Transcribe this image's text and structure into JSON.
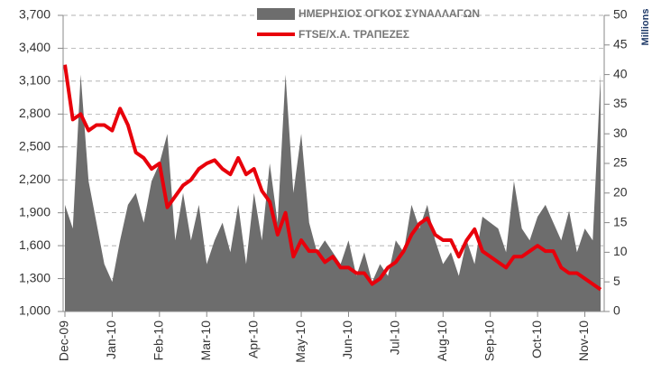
{
  "chart_data": {
    "type": "combo",
    "categories": [
      "Dec-09",
      null,
      null,
      null,
      null,
      null,
      "Jan-10",
      null,
      null,
      null,
      null,
      null,
      "Feb-10",
      null,
      null,
      null,
      null,
      null,
      "Mar-10",
      null,
      null,
      null,
      null,
      null,
      "Apr-10",
      null,
      null,
      null,
      null,
      null,
      "May-10",
      null,
      null,
      null,
      null,
      null,
      "Jun-10",
      null,
      null,
      null,
      null,
      null,
      "Jul-10",
      null,
      null,
      null,
      null,
      null,
      "Aug-10",
      null,
      null,
      null,
      null,
      null,
      "Sep-10",
      null,
      null,
      null,
      null,
      null,
      "Oct-10",
      null,
      null,
      null,
      null,
      null,
      "Nov-10",
      null,
      null
    ],
    "series": [
      {
        "name": "ΗΜΕΡΗΣΙΟΣ ΟΓΚΟΣ ΣΥΝΑΛΛΑΓΩΝ",
        "kind": "area",
        "axis": "y2",
        "color": "#6d6d6d",
        "values": [
          18,
          14,
          40,
          22,
          15,
          8,
          5,
          12,
          18,
          20,
          15,
          22,
          25,
          30,
          12,
          20,
          12,
          18,
          8,
          12,
          15,
          10,
          18,
          8,
          20,
          12,
          25,
          15,
          40,
          20,
          30,
          15,
          10,
          12,
          10,
          8,
          12,
          6,
          10,
          5,
          8,
          6,
          12,
          10,
          18,
          14,
          18,
          12,
          8,
          10,
          6,
          12,
          8,
          16,
          15,
          14,
          10,
          22,
          14,
          12,
          16,
          18,
          15,
          12,
          17,
          10,
          14,
          12,
          40
        ]
      },
      {
        "name": "FTSE/Χ.Α. ΤΡΑΠΕΖΕΣ",
        "kind": "line",
        "color": "#e8000b",
        "values": [
          3250,
          2750,
          2800,
          2650,
          2700,
          2700,
          2650,
          2850,
          2700,
          2450,
          2400,
          2300,
          2350,
          1950,
          2050,
          2150,
          2200,
          2300,
          2350,
          2380,
          2300,
          2250,
          2400,
          2250,
          2300,
          2100,
          2000,
          1700,
          1900,
          1500,
          1650,
          1550,
          1550,
          1450,
          1500,
          1400,
          1400,
          1350,
          1350,
          1250,
          1300,
          1400,
          1450,
          1550,
          1700,
          1800,
          1850,
          1700,
          1650,
          1650,
          1500,
          1650,
          1750,
          1550,
          1500,
          1450,
          1400,
          1500,
          1500,
          1550,
          1600,
          1550,
          1550,
          1400,
          1350,
          1350,
          1300,
          1250,
          1200
        ]
      }
    ],
    "ylim": [
      1000,
      3700
    ],
    "yticks": [
      {
        "value": 1000,
        "label": "1,000"
      },
      {
        "value": 1300,
        "label": "1,300"
      },
      {
        "value": 1600,
        "label": "1,600"
      },
      {
        "value": 1900,
        "label": "1,900"
      },
      {
        "value": 2200,
        "label": "2,200"
      },
      {
        "value": 2500,
        "label": "2,500"
      },
      {
        "value": 2800,
        "label": "2,800"
      },
      {
        "value": 3100,
        "label": "3,100"
      },
      {
        "value": 3400,
        "label": "3,400"
      },
      {
        "value": 3700,
        "label": "3,700"
      }
    ],
    "y2lim": [
      0,
      50
    ],
    "y2ticks": [
      0,
      5,
      10,
      15,
      20,
      25,
      30,
      35,
      40,
      45,
      50
    ],
    "y2label": "Millions",
    "grid": true,
    "legend": "top"
  }
}
